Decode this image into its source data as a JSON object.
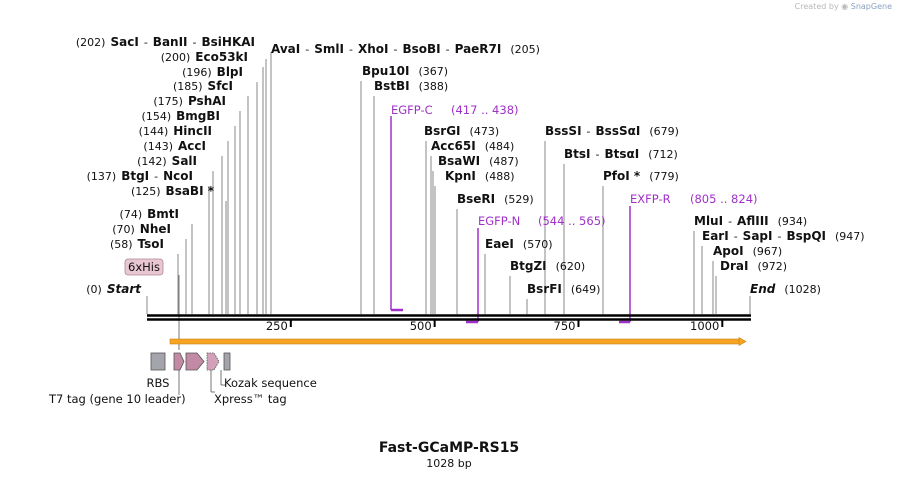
{
  "credit": {
    "prefix": "Created by",
    "brand": "SnapGene"
  },
  "map": {
    "title": "Fast-GCaMP-RS15",
    "length_label": "1028 bp",
    "length": 1028,
    "ticks": [
      {
        "label": "250",
        "pos": 250
      },
      {
        "label": "500",
        "pos": 500
      },
      {
        "label": "750",
        "pos": 750
      },
      {
        "label": "1000",
        "pos": 1000
      }
    ]
  },
  "site_rows": [
    {
      "parts": [
        {
          "t": "(202)",
          "k": "p"
        },
        {
          "t": "SacI",
          "k": "n"
        },
        {
          "t": "-",
          "k": "s"
        },
        {
          "t": "BanII",
          "k": "n"
        },
        {
          "t": "-",
          "k": "s"
        },
        {
          "t": "BsiHKAI",
          "k": "n"
        }
      ]
    },
    {
      "parts": [
        {
          "t": "(200)",
          "k": "p"
        },
        {
          "t": "Eco53kI",
          "k": "n"
        }
      ]
    },
    {
      "parts": [
        {
          "t": "(196)",
          "k": "p"
        },
        {
          "t": "BlpI",
          "k": "n"
        }
      ]
    },
    {
      "parts": [
        {
          "t": "(185)",
          "k": "p"
        },
        {
          "t": "SfcI",
          "k": "n"
        }
      ]
    },
    {
      "parts": [
        {
          "t": "(175)",
          "k": "p"
        },
        {
          "t": "PshAI",
          "k": "n"
        }
      ]
    },
    {
      "parts": [
        {
          "t": "(154)",
          "k": "p"
        },
        {
          "t": "BmgBI",
          "k": "n"
        }
      ]
    },
    {
      "parts": [
        {
          "t": "(144)",
          "k": "p"
        },
        {
          "t": "HincII",
          "k": "n"
        }
      ]
    },
    {
      "parts": [
        {
          "t": "(143)",
          "k": "p"
        },
        {
          "t": "AccI",
          "k": "n"
        }
      ]
    },
    {
      "parts": [
        {
          "t": "(142)",
          "k": "p"
        },
        {
          "t": "SalI",
          "k": "n"
        }
      ]
    },
    {
      "parts": [
        {
          "t": "(137)",
          "k": "p"
        },
        {
          "t": "BtgI",
          "k": "n"
        },
        {
          "t": "-",
          "k": "s"
        },
        {
          "t": "NcoI",
          "k": "n"
        }
      ]
    },
    {
      "parts": [
        {
          "t": "(125)",
          "k": "p"
        },
        {
          "t": "BsaBI *",
          "k": "n"
        }
      ]
    },
    {
      "parts": [
        {
          "t": "(74)",
          "k": "p"
        },
        {
          "t": "BmtI",
          "k": "n"
        }
      ]
    },
    {
      "parts": [
        {
          "t": "(70)",
          "k": "p"
        },
        {
          "t": "NheI",
          "k": "n"
        }
      ]
    },
    {
      "parts": [
        {
          "t": "(58)",
          "k": "p"
        },
        {
          "t": "TsoI",
          "k": "n"
        }
      ]
    },
    {
      "parts": [
        {
          "t": "(0)",
          "k": "p"
        },
        {
          "t": "Start",
          "k": "i"
        }
      ]
    },
    {
      "parts": [
        {
          "t": "AvaI",
          "k": "n"
        },
        {
          "t": "-",
          "k": "s"
        },
        {
          "t": "SmlI",
          "k": "n"
        },
        {
          "t": "-",
          "k": "s"
        },
        {
          "t": "XhoI",
          "k": "n"
        },
        {
          "t": "-",
          "k": "s"
        },
        {
          "t": "BsoBI",
          "k": "n"
        },
        {
          "t": "-",
          "k": "s"
        },
        {
          "t": "PaeR7I",
          "k": "n"
        },
        {
          "t": "(205)",
          "k": "p"
        }
      ]
    },
    {
      "parts": [
        {
          "t": "Bpu10I",
          "k": "n"
        },
        {
          "t": "(367)",
          "k": "p"
        }
      ]
    },
    {
      "parts": [
        {
          "t": "BstBI",
          "k": "n"
        },
        {
          "t": "(388)",
          "k": "p"
        }
      ]
    },
    {
      "parts": [
        {
          "t": "BsrGI",
          "k": "n"
        },
        {
          "t": "(473)",
          "k": "p"
        }
      ]
    },
    {
      "parts": [
        {
          "t": "Acc65I",
          "k": "n"
        },
        {
          "t": "(484)",
          "k": "p"
        }
      ]
    },
    {
      "parts": [
        {
          "t": "BsaWI",
          "k": "n"
        },
        {
          "t": "(487)",
          "k": "p"
        }
      ]
    },
    {
      "parts": [
        {
          "t": "KpnI",
          "k": "n"
        },
        {
          "t": "(488)",
          "k": "p"
        }
      ]
    },
    {
      "parts": [
        {
          "t": "BseRI",
          "k": "n"
        },
        {
          "t": "(529)",
          "k": "p"
        }
      ]
    },
    {
      "parts": [
        {
          "t": "EaeI",
          "k": "n"
        },
        {
          "t": "(570)",
          "k": "p"
        }
      ]
    },
    {
      "parts": [
        {
          "t": "BtgZI",
          "k": "n"
        },
        {
          "t": "(620)",
          "k": "p"
        }
      ]
    },
    {
      "parts": [
        {
          "t": "BsrFI",
          "k": "n"
        },
        {
          "t": "(649)",
          "k": "p"
        }
      ]
    },
    {
      "parts": [
        {
          "t": "BssSI",
          "k": "n"
        },
        {
          "t": "-",
          "k": "s"
        },
        {
          "t": "BssSαI",
          "k": "n"
        },
        {
          "t": "(679)",
          "k": "p"
        }
      ]
    },
    {
      "parts": [
        {
          "t": "BtsI",
          "k": "n"
        },
        {
          "t": "-",
          "k": "s"
        },
        {
          "t": "BtsαI",
          "k": "n"
        },
        {
          "t": "(712)",
          "k": "p"
        }
      ]
    },
    {
      "parts": [
        {
          "t": "PfoI *",
          "k": "n"
        },
        {
          "t": "(779)",
          "k": "p"
        }
      ]
    },
    {
      "parts": [
        {
          "t": "MluI",
          "k": "n"
        },
        {
          "t": "-",
          "k": "s"
        },
        {
          "t": "AflIII",
          "k": "n"
        },
        {
          "t": "(934)",
          "k": "p"
        }
      ]
    },
    {
      "parts": [
        {
          "t": "EarI",
          "k": "n"
        },
        {
          "t": "-",
          "k": "s"
        },
        {
          "t": "SapI",
          "k": "n"
        },
        {
          "t": "-",
          "k": "s"
        },
        {
          "t": "BspQI",
          "k": "n"
        },
        {
          "t": "(947)",
          "k": "p"
        }
      ]
    },
    {
      "parts": [
        {
          "t": "ApoI",
          "k": "n"
        },
        {
          "t": "(967)",
          "k": "p"
        }
      ]
    },
    {
      "parts": [
        {
          "t": "DraI",
          "k": "n"
        },
        {
          "t": "(972)",
          "k": "p"
        }
      ]
    },
    {
      "parts": [
        {
          "t": "End",
          "k": "i"
        },
        {
          "t": "(1028)",
          "k": "p"
        }
      ]
    }
  ],
  "primers": [
    {
      "name": "EGFP-C",
      "range": "(417 .. 438)"
    },
    {
      "name": "EGFP-N",
      "range": "(544 .. 565)"
    },
    {
      "name": "EXFP-R",
      "range": "(805 .. 824)"
    }
  ],
  "features": {
    "his_tag": "6xHis",
    "rbs": "RBS",
    "t7_tag": "T7 tag (gene 10 leader)",
    "kozak": "Kozak sequence",
    "xpress": "Xpress™ tag"
  },
  "colors": {
    "primer": "#a030c8",
    "feature_box": "#a4a4ac",
    "feature_arrow": "#c28aa4",
    "his_fill": "#e8c6d2",
    "orf": "#f7a520",
    "backbone": "#000000"
  }
}
